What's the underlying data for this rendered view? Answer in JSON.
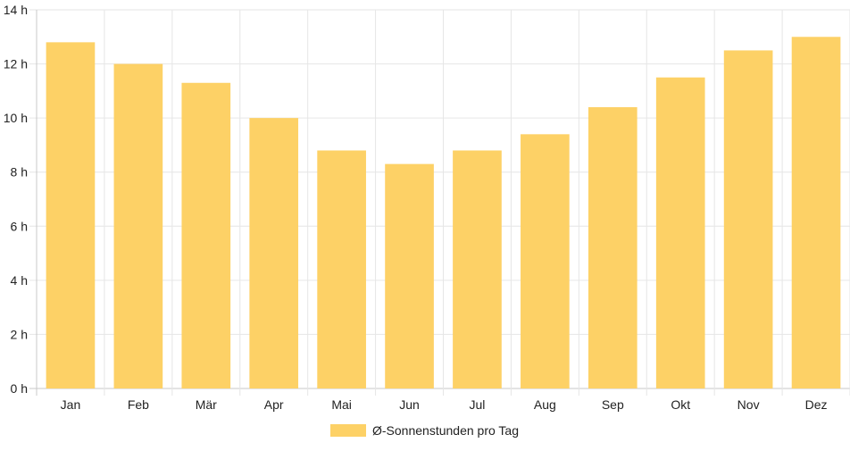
{
  "chart_data": {
    "type": "bar",
    "categories": [
      "Jan",
      "Feb",
      "Mär",
      "Apr",
      "Mai",
      "Jun",
      "Jul",
      "Aug",
      "Sep",
      "Okt",
      "Nov",
      "Dez"
    ],
    "series": [
      {
        "name": "Ø-Sonnenstunden pro Tag",
        "values": [
          12.8,
          12.0,
          11.3,
          10.0,
          8.8,
          8.3,
          8.8,
          9.4,
          10.4,
          11.5,
          12.5,
          13.0
        ],
        "color": "#fdd166"
      }
    ],
    "y_ticks": [
      "0 h",
      "2 h",
      "4 h",
      "6 h",
      "8 h",
      "10 h",
      "12 h",
      "14 h"
    ],
    "ylim": [
      0,
      14
    ],
    "grid": true,
    "legend_position": "bottom"
  }
}
